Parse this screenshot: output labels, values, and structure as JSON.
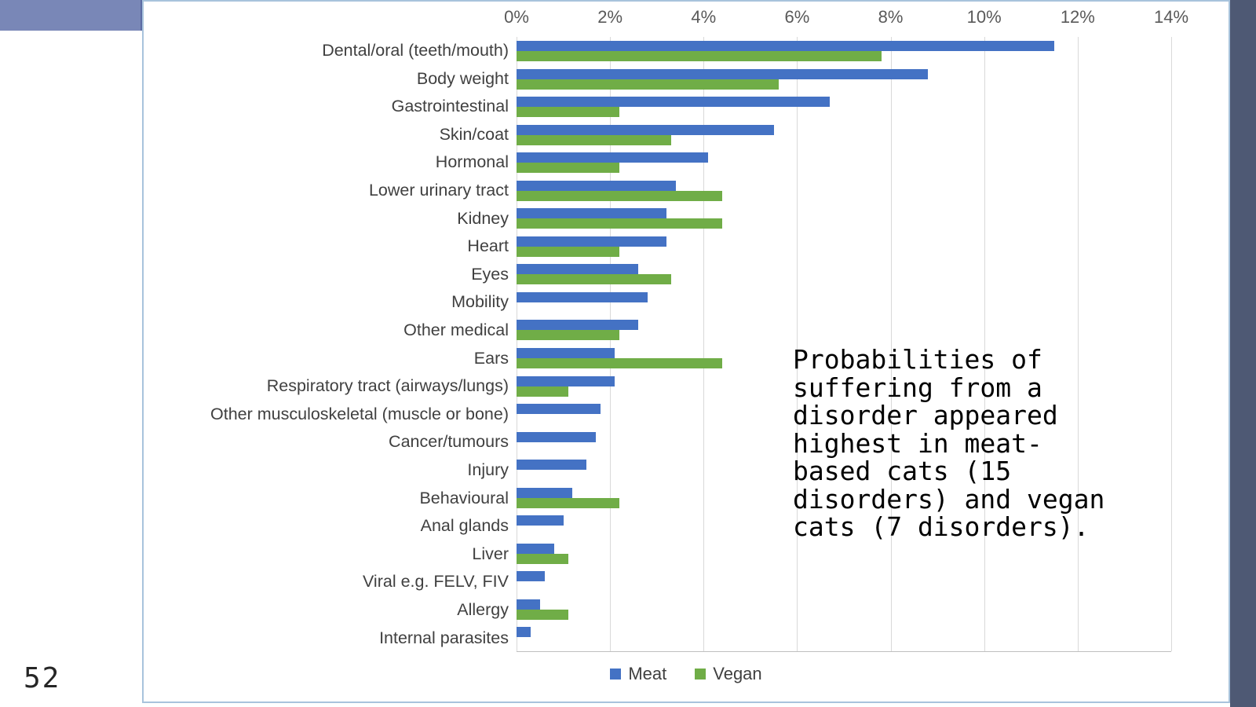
{
  "slide": {
    "number": "52"
  },
  "annotation": {
    "text": "Probabilities of\nsuffering from a\ndisorder appeared\nhighest in meat-\nbased cats (15\ndisorders) and vegan\ncats (7 disorders)."
  },
  "chart_data": {
    "type": "bar",
    "orientation": "horizontal",
    "title": "",
    "xlabel": "",
    "ylabel": "",
    "unit": "%",
    "xlim": [
      0,
      14
    ],
    "x_tick_labels": [
      "0%",
      "2%",
      "4%",
      "6%",
      "8%",
      "10%",
      "12%",
      "14%"
    ],
    "grid": true,
    "legend_position": "bottom",
    "categories": [
      "Dental/oral (teeth/mouth)",
      "Body weight",
      "Gastrointestinal",
      "Skin/coat",
      "Hormonal",
      "Lower urinary tract",
      "Kidney",
      "Heart",
      "Eyes",
      "Mobility",
      "Other medical",
      "Ears",
      "Respiratory tract (airways/lungs)",
      "Other musculoskeletal (muscle or bone)",
      "Cancer/tumours",
      "Injury",
      "Behavioural",
      "Anal glands",
      "Liver",
      "Viral e.g. FELV, FIV",
      "Allergy",
      "Internal parasites"
    ],
    "series": [
      {
        "name": "Meat",
        "color": "#4472C4",
        "values": [
          11.5,
          8.8,
          6.7,
          5.5,
          4.1,
          3.4,
          3.2,
          3.2,
          2.6,
          2.8,
          2.6,
          2.1,
          2.1,
          1.8,
          1.7,
          1.5,
          1.2,
          1.0,
          0.8,
          0.6,
          0.5,
          0.3
        ]
      },
      {
        "name": "Vegan",
        "color": "#70AD47",
        "values": [
          7.8,
          5.6,
          2.2,
          3.3,
          2.2,
          4.4,
          4.4,
          2.2,
          3.3,
          0,
          2.2,
          4.4,
          1.1,
          0,
          0,
          0,
          2.2,
          0,
          1.1,
          0,
          1.1,
          0
        ]
      }
    ]
  },
  "colors": {
    "meat_bar": "#4472C4",
    "vegan_bar": "#70AD47",
    "header_rect": "#7987B7",
    "side_strip": "#4E5974",
    "chart_border": "#A8C3DC",
    "gridline": "#D9D9D9",
    "axis_text": "#595959",
    "category_text": "#404040"
  }
}
